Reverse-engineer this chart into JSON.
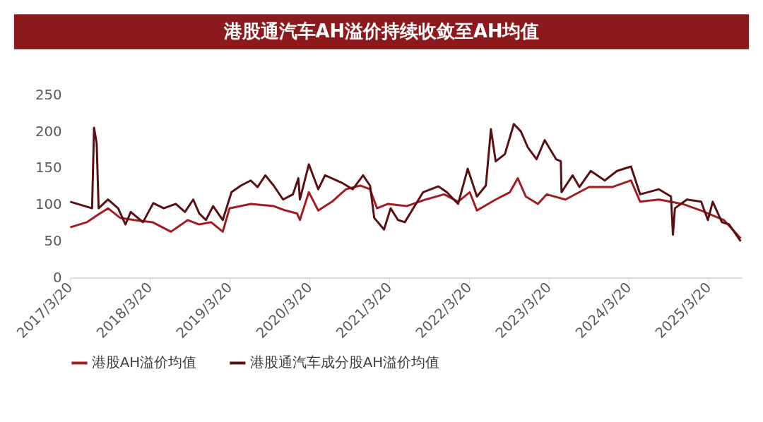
{
  "chart_data": {
    "type": "line",
    "title": "港股通汽车AH溢价持续收敛至AH均值",
    "xlim": [
      "2017-03-20",
      "2025-08-20"
    ],
    "xticks": [
      {
        "value": "2017-03-20",
        "label": "2017/3/20"
      },
      {
        "value": "2018-03-20",
        "label": "2018/3/20"
      },
      {
        "value": "2019-03-20",
        "label": "2019/3/20"
      },
      {
        "value": "2020-03-20",
        "label": "2020/3/20"
      },
      {
        "value": "2021-03-20",
        "label": "2021/3/20"
      },
      {
        "value": "2022-03-20",
        "label": "2022/3/20"
      },
      {
        "value": "2023-03-20",
        "label": "2023/3/20"
      },
      {
        "value": "2024-03-20",
        "label": "2024/3/20"
      },
      {
        "value": "2025-03-20",
        "label": "2025/3/20"
      }
    ],
    "ylim": [
      0,
      250
    ],
    "yticks": [
      0,
      50,
      100,
      150,
      200,
      250
    ],
    "grid": false,
    "legend": "bottom",
    "marker": "none",
    "line_style": "solid",
    "series": [
      {
        "name": "港股AH溢价均值",
        "color": "#a11c22",
        "x": [
          "2017-03-21",
          "2017-06-05",
          "2017-07-20",
          "2017-09-10",
          "2017-11-04",
          "2018-01-07",
          "2018-04-02",
          "2018-06-25",
          "2018-09-10",
          "2018-11-01",
          "2018-12-26",
          "2019-02-17",
          "2019-03-20",
          "2019-06-25",
          "2019-10-08",
          "2019-12-02",
          "2020-01-23",
          "2020-02-05",
          "2020-03-17",
          "2020-04-29",
          "2020-07-01",
          "2020-09-03",
          "2020-11-07",
          "2020-12-22",
          "2021-01-23",
          "2021-03-14",
          "2021-06-08",
          "2021-09-03",
          "2021-11-26",
          "2022-01-29",
          "2022-03-23",
          "2022-04-25",
          "2022-07-20",
          "2022-09-23",
          "2022-10-29",
          "2022-12-05",
          "2023-01-29",
          "2023-03-10",
          "2023-06-04",
          "2023-09-20",
          "2024-01-04",
          "2024-03-30",
          "2024-05-11",
          "2024-08-05",
          "2024-11-20",
          "2025-02-14",
          "2025-05-29",
          "2025-08-14"
        ],
        "values": [
          69,
          76,
          85,
          95,
          82,
          79,
          76,
          63,
          79,
          73,
          76,
          63,
          95,
          101,
          98,
          92,
          88,
          79,
          117,
          92,
          104,
          121,
          126,
          121,
          95,
          101,
          98,
          107,
          114,
          104,
          117,
          92,
          107,
          117,
          136,
          111,
          101,
          114,
          107,
          124,
          124,
          133,
          104,
          107,
          101,
          92,
          79,
          54
        ]
      },
      {
        "name": "港股通汽车成分股AH溢价均值",
        "color": "#581012",
        "x": [
          "2017-03-21",
          "2017-06-29",
          "2017-07-08",
          "2017-07-20",
          "2017-07-29",
          "2017-09-10",
          "2017-10-26",
          "2017-11-29",
          "2017-12-23",
          "2018-02-17",
          "2018-04-05",
          "2018-05-23",
          "2018-07-17",
          "2018-08-28",
          "2018-10-05",
          "2018-11-01",
          "2018-12-02",
          "2019-01-04",
          "2019-02-17",
          "2019-03-29",
          "2019-05-11",
          "2019-06-25",
          "2019-07-26",
          "2019-08-31",
          "2019-10-08",
          "2019-11-20",
          "2020-01-04",
          "2020-01-29",
          "2020-02-05",
          "2020-03-17",
          "2020-04-29",
          "2020-05-30",
          "2020-08-14",
          "2020-10-04",
          "2020-11-20",
          "2020-12-22",
          "2021-01-10",
          "2021-02-24",
          "2021-03-26",
          "2021-04-29",
          "2021-05-30",
          "2021-08-22",
          "2021-10-30",
          "2021-12-08",
          "2022-01-29",
          "2022-03-14",
          "2022-04-25",
          "2022-06-05",
          "2022-06-28",
          "2022-07-20",
          "2022-08-31",
          "2022-10-11",
          "2022-11-12",
          "2022-12-14",
          "2023-01-23",
          "2023-03-01",
          "2023-04-22",
          "2023-05-14",
          "2023-05-17",
          "2023-07-07",
          "2023-08-07",
          "2023-09-28",
          "2023-12-01",
          "2024-01-26",
          "2024-03-30",
          "2024-05-11",
          "2024-08-05",
          "2024-09-29",
          "2024-10-08",
          "2024-10-17",
          "2024-12-11",
          "2025-02-14",
          "2025-03-17",
          "2025-04-08",
          "2025-05-20",
          "2025-06-22",
          "2025-08-14"
        ],
        "values": [
          104,
          95,
          205,
          184,
          95,
          107,
          95,
          73,
          90,
          76,
          102,
          95,
          101,
          90,
          107,
          88,
          79,
          98,
          79,
          117,
          126,
          133,
          124,
          140,
          126,
          107,
          114,
          136,
          107,
          155,
          121,
          140,
          130,
          121,
          140,
          126,
          82,
          66,
          95,
          79,
          76,
          117,
          125,
          117,
          101,
          149,
          111,
          126,
          203,
          159,
          169,
          210,
          200,
          178,
          162,
          188,
          162,
          159,
          117,
          140,
          124,
          146,
          133,
          146,
          152,
          114,
          121,
          111,
          59,
          95,
          107,
          104,
          79,
          104,
          76,
          73,
          50
        ]
      }
    ]
  }
}
